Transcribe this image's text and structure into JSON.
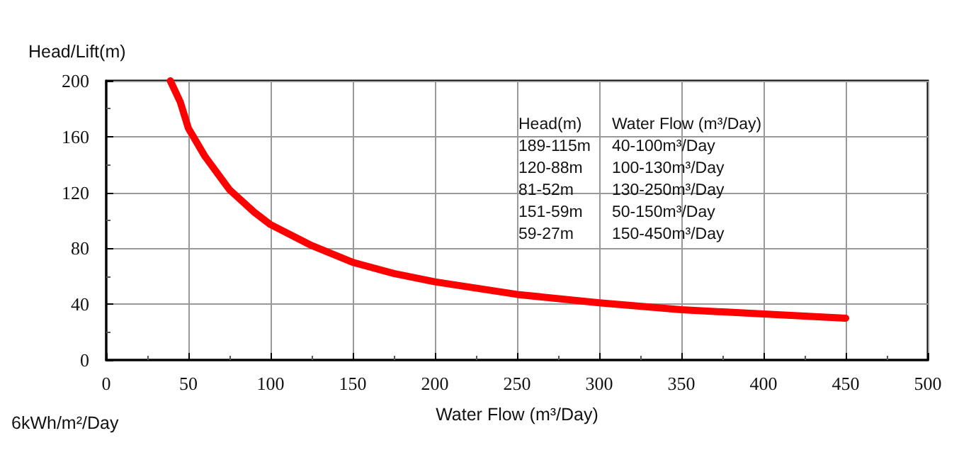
{
  "chart_data": {
    "type": "line",
    "xlabel": "Water Flow (m³/Day)",
    "ylabel": "Head/Lift(m)",
    "annotations": [
      "Head(m)    Water Flow (m³/Day)",
      "189-115m    40-100m³/Day",
      "120-88m    100-130m³/Day",
      "81-52m    130-250m³/Day",
      "151-59m    50-150m³/Day",
      "59-27m    150-450m³/Day",
      "6kWh/m²/Day"
    ],
    "x": [
      39,
      45,
      50,
      60,
      75,
      90,
      100,
      125,
      150,
      175,
      200,
      250,
      300,
      350,
      400,
      450
    ],
    "series": [
      {
        "color": "#ff0000",
        "values": [
          200,
          185,
          166,
          146,
          122,
          106,
          97,
          82,
          70,
          62,
          56,
          47,
          41,
          36,
          33,
          30
        ]
      }
    ],
    "xlim": [
      0,
      500
    ],
    "xticks": [
      0,
      50,
      100,
      150,
      200,
      250,
      300,
      350,
      400,
      450,
      500
    ],
    "ylim": [
      0,
      200
    ],
    "yticks": [
      0,
      40,
      80,
      120,
      160,
      200
    ],
    "grid": true,
    "marker": "none",
    "line_style": "solid"
  }
}
